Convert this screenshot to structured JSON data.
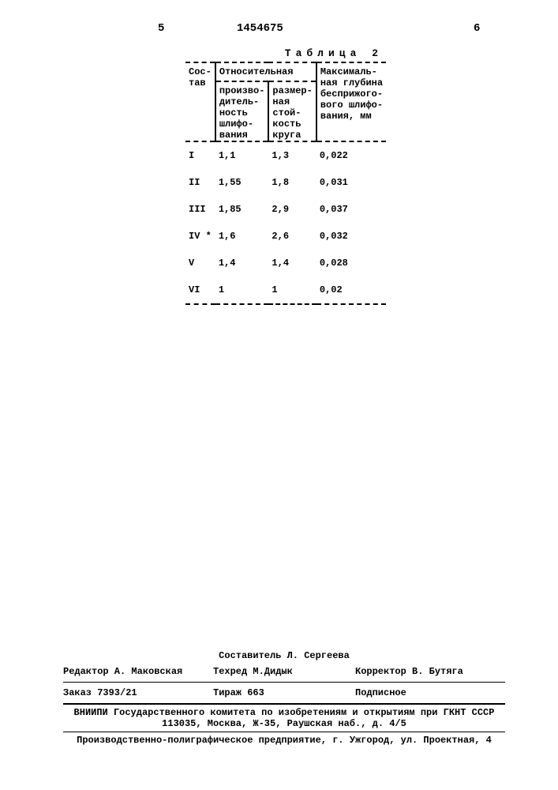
{
  "page_left": "5",
  "page_right": "6",
  "doc_number": "1454675",
  "table": {
    "title": "Таблица 2",
    "columns": {
      "c1": "Сос-\nтав",
      "c2_group": "Относительная",
      "c2a": "произво-\nдитель-\nность\nшлифо-\nвания",
      "c2b": "размер-\nная\nстой-\nкость\nкруга",
      "c3": "Максималь-\nная глубина\nбесприжого-\nвого шлифо-\nвания, мм"
    },
    "rows": [
      {
        "c1": "I",
        "c2a": "1,1",
        "c2b": "1,3",
        "c3": "0,022"
      },
      {
        "c1": "II",
        "c2a": "1,55",
        "c2b": "1,8",
        "c3": "0,031"
      },
      {
        "c1": "III",
        "c2a": "1,85",
        "c2b": "2,9",
        "c3": "0,037"
      },
      {
        "c1": "IV *",
        "c2a": "1,6",
        "c2b": "2,6",
        "c3": "0,032"
      },
      {
        "c1": "V",
        "c2a": "1,4",
        "c2b": "1,4",
        "c3": "0,028"
      },
      {
        "c1": "VI",
        "c2a": "1",
        "c2b": "1",
        "c3": "0,02"
      }
    ]
  },
  "footer": {
    "compiler": "Составитель Л. Сергеева",
    "editor": "Редактор А. Маковская",
    "techred": "Техред   М.Дидык",
    "corrector": "Корректор В. Бутяга",
    "order": "Заказ 7393/21",
    "tirage": "Тираж 663",
    "subscribe": "Подписное",
    "org1": "ВНИИПИ Государственного комитета по изобретениям и открытиям при ГКНТ СССР",
    "org2": "113035, Москва, Ж-35, Раушская наб., д. 4/5",
    "printer": "Производственно-полиграфическое предприятие, г. Ужгород, ул. Проектная, 4"
  }
}
